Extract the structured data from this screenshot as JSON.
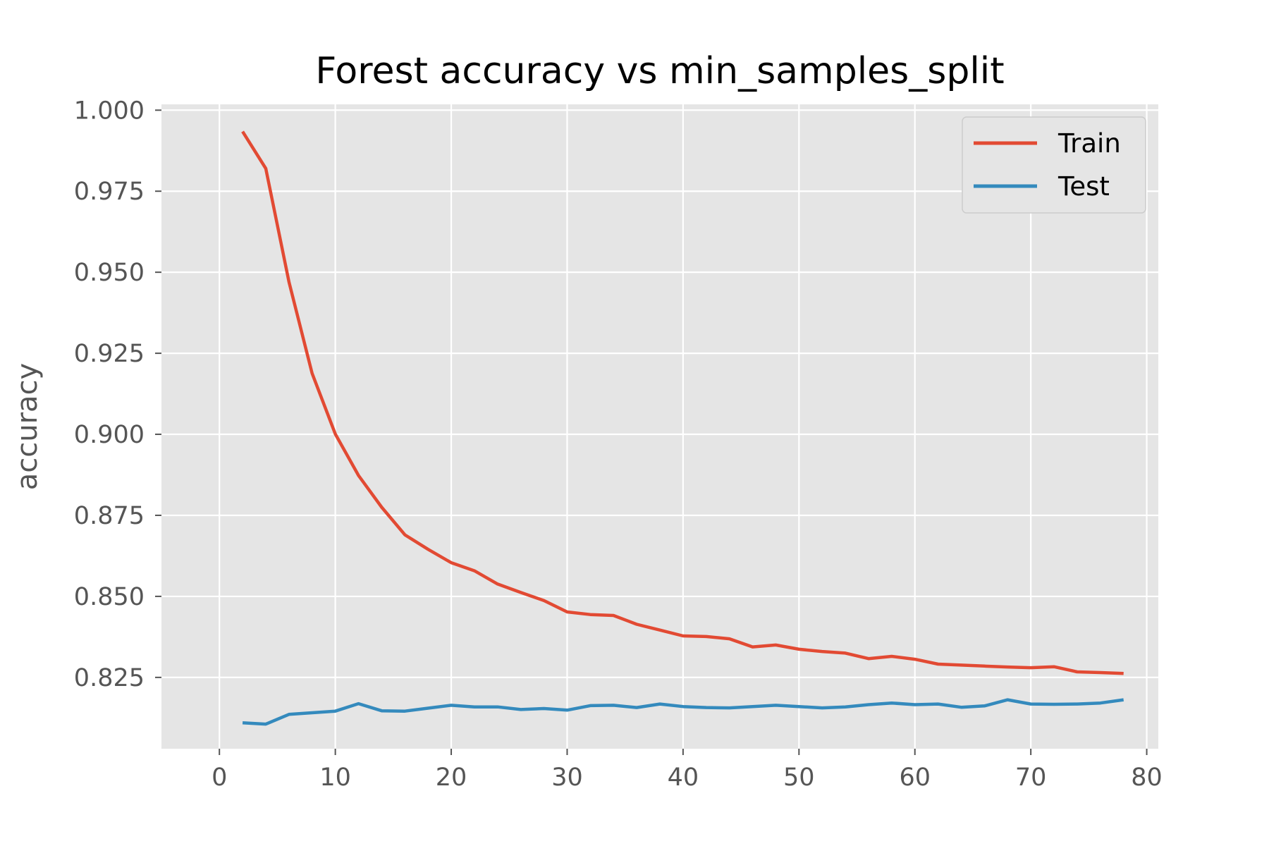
{
  "chart_data": {
    "type": "line",
    "title": "Forest accuracy vs min_samples_split",
    "xlabel": "",
    "ylabel": "accuracy",
    "xlim": [
      -5,
      81
    ],
    "ylim": [
      0.803,
      1.0018
    ],
    "x_ticks": [
      0,
      10,
      20,
      30,
      40,
      50,
      60,
      70,
      80
    ],
    "x_tick_labels": [
      "0",
      "10",
      "20",
      "30",
      "40",
      "50",
      "60",
      "70",
      "80"
    ],
    "y_ticks": [
      0.825,
      0.85,
      0.875,
      0.9,
      0.925,
      0.95,
      0.975,
      1.0
    ],
    "y_tick_labels": [
      "0.825",
      "0.850",
      "0.875",
      "0.900",
      "0.925",
      "0.950",
      "0.975",
      "1.000"
    ],
    "grid": true,
    "legend_position": "top-right",
    "x": [
      2,
      4,
      6,
      8,
      10,
      12,
      14,
      16,
      18,
      20,
      22,
      24,
      26,
      28,
      30,
      32,
      34,
      36,
      38,
      40,
      42,
      44,
      46,
      48,
      50,
      52,
      54,
      56,
      58,
      60,
      62,
      64,
      66,
      68,
      70,
      72,
      74,
      76,
      78
    ],
    "series": [
      {
        "name": "Train",
        "color": "#E24A33",
        "values": [
          0.9934,
          0.982,
          0.947,
          0.9188,
          0.9001,
          0.8873,
          0.8775,
          0.869,
          0.8645,
          0.8604,
          0.8579,
          0.8538,
          0.8512,
          0.8487,
          0.8452,
          0.8444,
          0.8441,
          0.8414,
          0.8396,
          0.8378,
          0.8376,
          0.8369,
          0.8344,
          0.835,
          0.8337,
          0.833,
          0.8325,
          0.8308,
          0.8315,
          0.8306,
          0.8291,
          0.8288,
          0.8285,
          0.8282,
          0.828,
          0.8283,
          0.8267,
          0.8265,
          0.8262
        ]
      },
      {
        "name": "Test",
        "color": "#348ABD",
        "values": [
          0.811,
          0.8106,
          0.8136,
          0.8141,
          0.8146,
          0.8169,
          0.8147,
          0.8146,
          0.8155,
          0.8164,
          0.8159,
          0.8159,
          0.8151,
          0.8154,
          0.8149,
          0.8163,
          0.8164,
          0.8157,
          0.8168,
          0.816,
          0.8157,
          0.8156,
          0.816,
          0.8164,
          0.816,
          0.8156,
          0.8159,
          0.8166,
          0.8171,
          0.8166,
          0.8168,
          0.8158,
          0.8162,
          0.8181,
          0.8168,
          0.8167,
          0.8168,
          0.8171,
          0.8181
        ]
      }
    ]
  }
}
